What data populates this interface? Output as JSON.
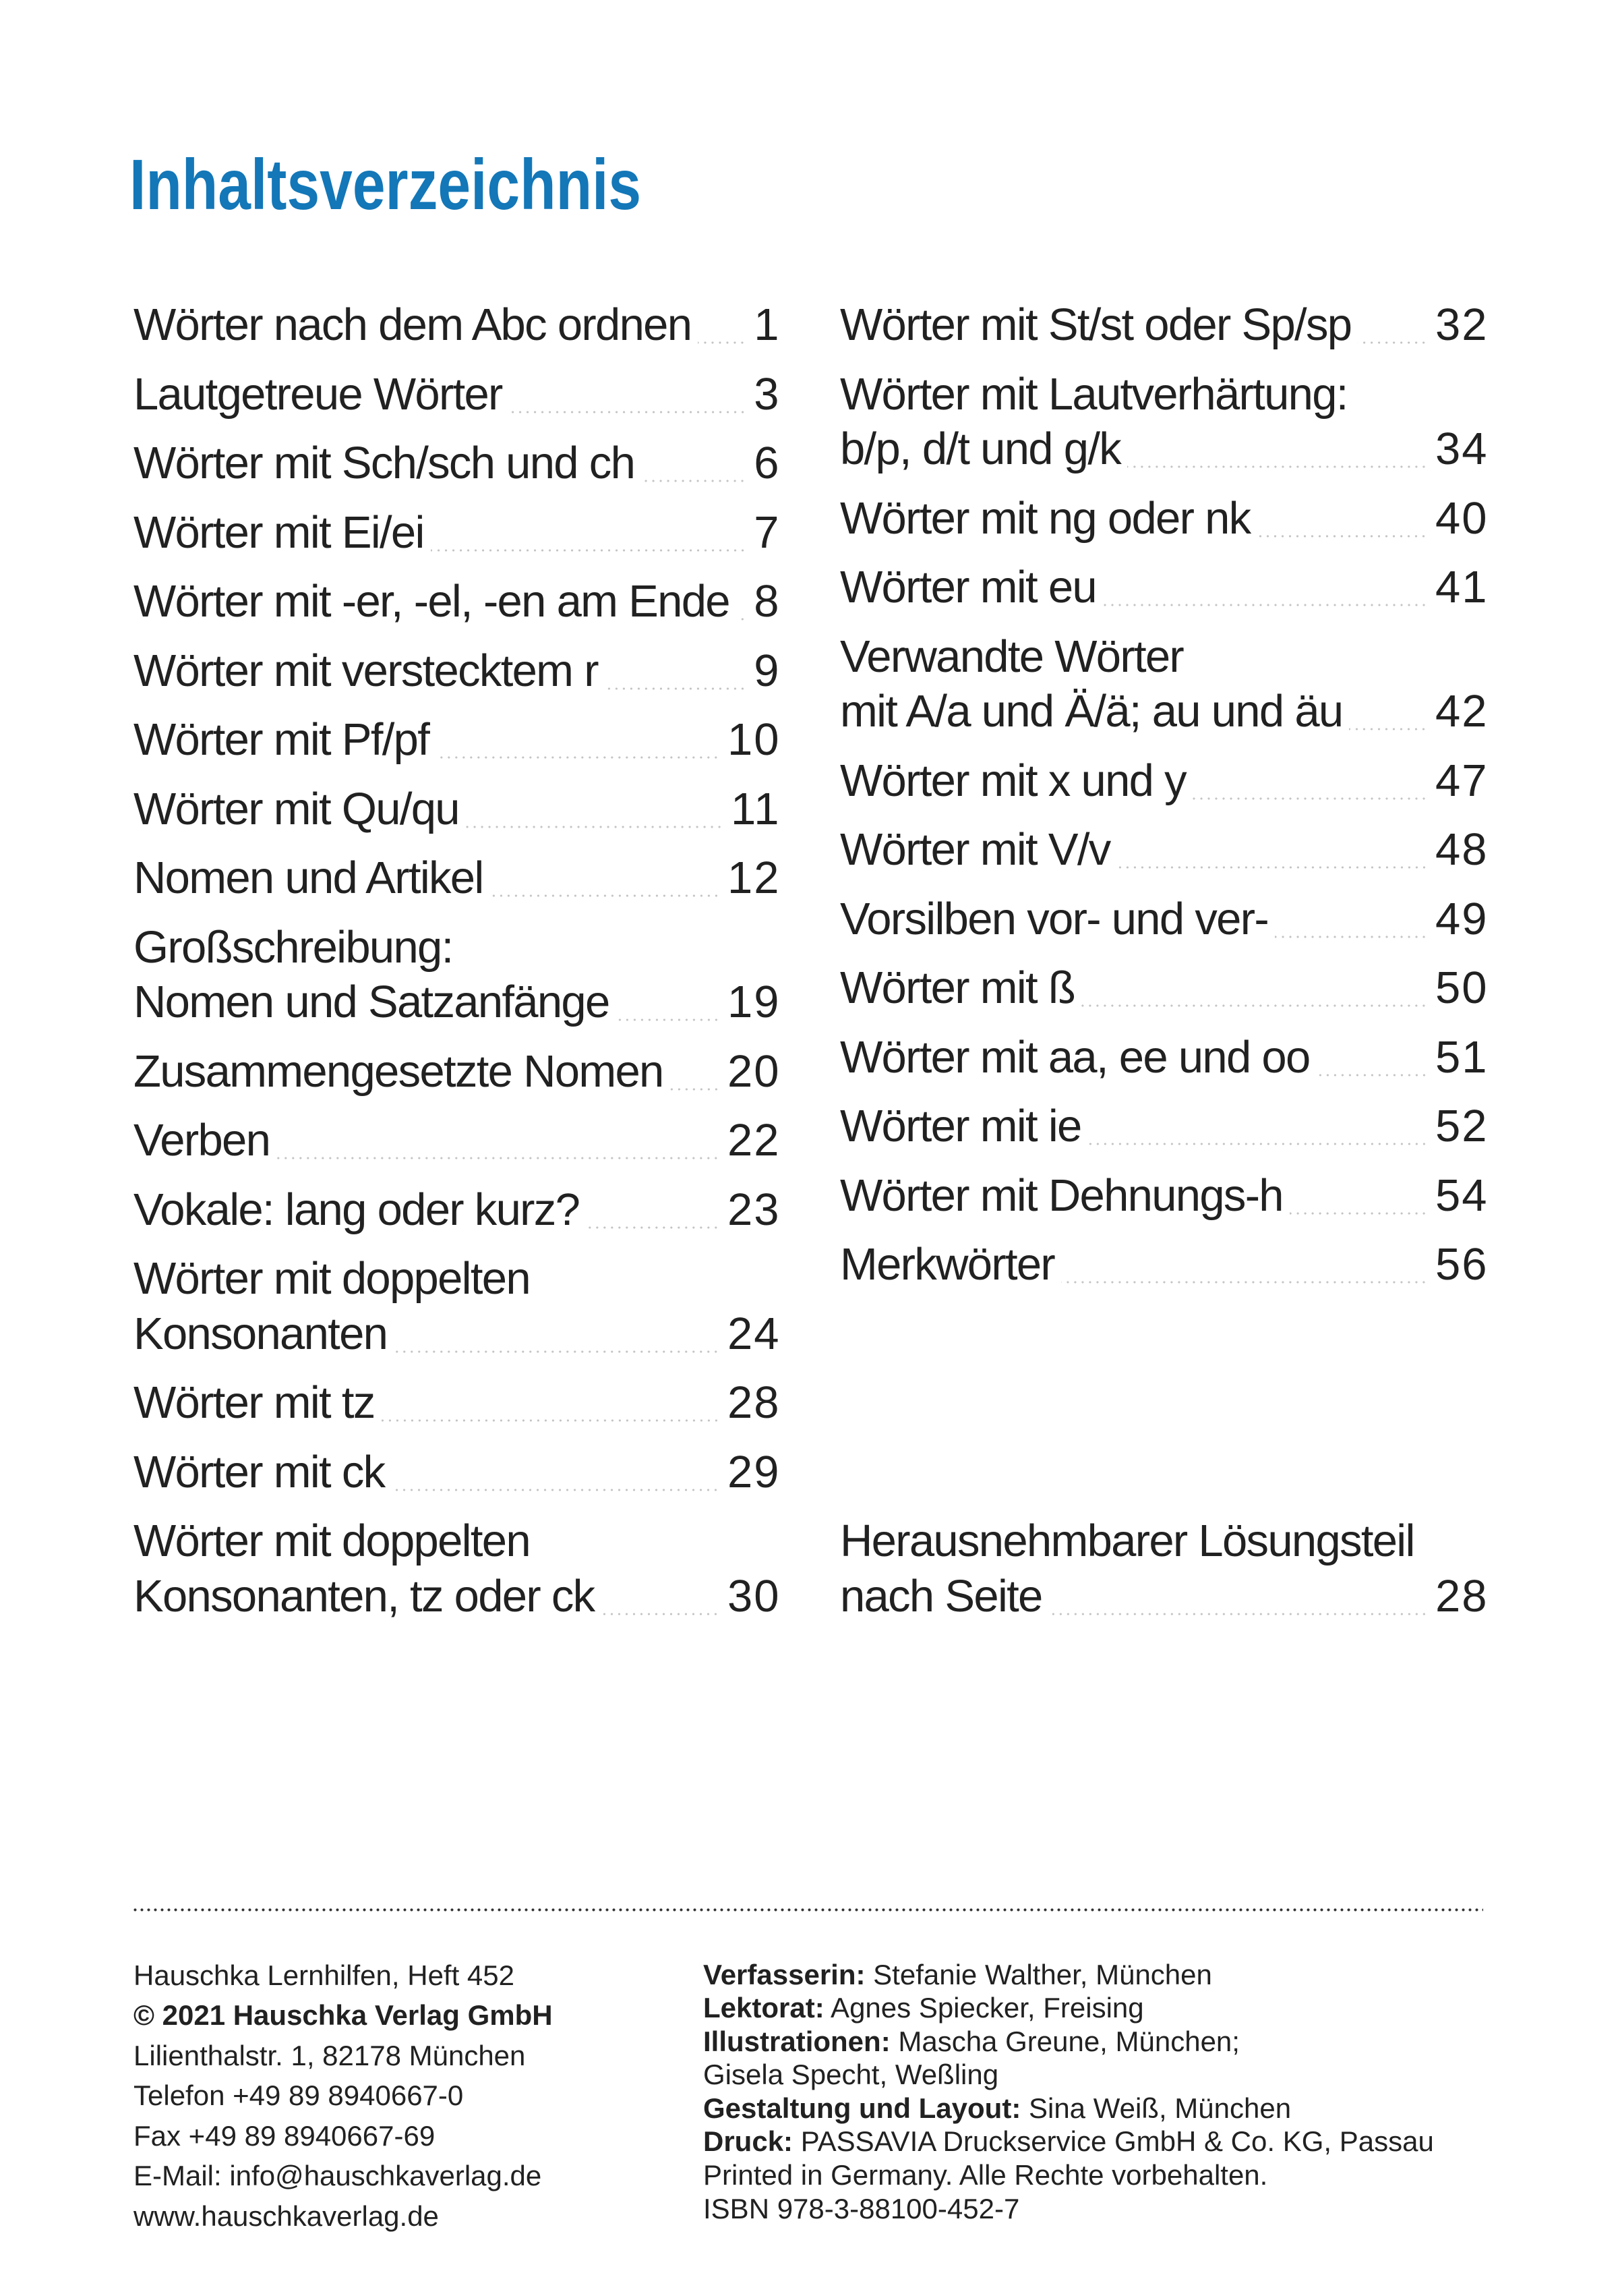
{
  "document": {
    "title": "Inhaltsverzeichnis"
  },
  "toc": {
    "left_column": [
      {
        "lines": [
          "Wörter nach dem Abc ordnen"
        ],
        "page": "1"
      },
      {
        "lines": [
          "Lautgetreue Wörter"
        ],
        "page": "3"
      },
      {
        "lines": [
          "Wörter mit Sch/sch und ch"
        ],
        "page": "6"
      },
      {
        "lines": [
          "Wörter mit Ei/ei"
        ],
        "page": "7"
      },
      {
        "lines": [
          "Wörter mit -er, -el, -en am Ende"
        ],
        "page": "8"
      },
      {
        "lines": [
          "Wörter mit verstecktem r"
        ],
        "page": "9"
      },
      {
        "lines": [
          "Wörter mit Pf/pf"
        ],
        "page": "10"
      },
      {
        "lines": [
          "Wörter mit Qu/qu"
        ],
        "page": "11"
      },
      {
        "lines": [
          "Nomen und Artikel"
        ],
        "page": "12"
      },
      {
        "lines": [
          "Großschreibung:",
          "Nomen und Satzanfänge"
        ],
        "page": "19"
      },
      {
        "lines": [
          "Zusammengesetzte Nomen"
        ],
        "page": "20"
      },
      {
        "lines": [
          "Verben"
        ],
        "page": "22"
      },
      {
        "lines": [
          "Vokale: lang oder kurz?"
        ],
        "page": "23"
      },
      {
        "lines": [
          "Wörter mit doppelten",
          "Konsonanten"
        ],
        "page": "24"
      },
      {
        "lines": [
          "Wörter mit tz"
        ],
        "page": "28"
      },
      {
        "lines": [
          "Wörter mit ck"
        ],
        "page": "29"
      },
      {
        "lines": [
          "Wörter mit doppelten",
          "Konsonanten, tz oder ck"
        ],
        "page": "30"
      }
    ],
    "right_column": [
      {
        "lines": [
          "Wörter mit St/st oder Sp/sp"
        ],
        "page": "32"
      },
      {
        "lines": [
          "Wörter mit Lautverhärtung:",
          "b/p, d/t und g/k"
        ],
        "page": "34"
      },
      {
        "lines": [
          "Wörter mit ng oder nk"
        ],
        "page": "40"
      },
      {
        "lines": [
          "Wörter mit eu"
        ],
        "page": "41"
      },
      {
        "lines": [
          "Verwandte Wörter",
          "mit A/a und Ä/ä; au und äu"
        ],
        "page": "42"
      },
      {
        "lines": [
          "Wörter mit x und y"
        ],
        "page": "47"
      },
      {
        "lines": [
          "Wörter mit V/v"
        ],
        "page": "48"
      },
      {
        "lines": [
          "Vorsilben vor- und ver-"
        ],
        "page": "49"
      },
      {
        "lines": [
          "Wörter mit ß"
        ],
        "page": "50"
      },
      {
        "lines": [
          "Wörter mit aa, ee und oo"
        ],
        "page": "51"
      },
      {
        "lines": [
          "Wörter mit ie"
        ],
        "page": "52"
      },
      {
        "lines": [
          "Wörter mit Dehnungs-h"
        ],
        "page": "54"
      },
      {
        "lines": [
          "Merkwörter"
        ],
        "page": "56"
      },
      {
        "lines": [
          "Herausnehmbarer Lösungsteil",
          "nach Seite"
        ],
        "page": "28",
        "detached": true
      }
    ]
  },
  "imprint": {
    "publisher_block": [
      {
        "text": "Hauschka Lernhilfen, Heft 452",
        "bold": false
      },
      {
        "text": "© 2021 Hauschka Verlag GmbH",
        "bold": true
      },
      {
        "text": "Lilienthalstr. 1, 82178 München",
        "bold": false
      },
      {
        "text": "Telefon +49 89 8940667-0",
        "bold": false
      },
      {
        "text": "Fax +49 89 8940667-69",
        "bold": false
      },
      {
        "text": "E-Mail: info@hauschkaverlag.de",
        "bold": false
      },
      {
        "text": "www.hauschkaverlag.de",
        "bold": false
      }
    ],
    "credits_block": [
      {
        "label": "Verfasserin:",
        "text": " Stefanie Walther, München"
      },
      {
        "label": "Lektorat:",
        "text": " Agnes Spiecker, Freising"
      },
      {
        "label": "Illustrationen:",
        "text": " Mascha Greune, München;"
      },
      {
        "label": "",
        "text": "Gisela Specht, Weßling"
      },
      {
        "label": "Gestaltung und Layout:",
        "text": " Sina Weiß, München"
      },
      {
        "label": "Druck:",
        "text": " PASSAVIA Druckservice GmbH & Co. KG, Passau"
      },
      {
        "label": "",
        "text": "Printed in Germany. Alle Rechte vorbehalten."
      },
      {
        "label": "",
        "text": "ISBN 978-3-88100-452-7"
      }
    ]
  },
  "colors": {
    "title_blue": "#1377b8",
    "body_text": "#212121",
    "leader_dots": "#c4c4c4",
    "rule_dots": "#3c3c3c",
    "background": "#ffffff"
  }
}
